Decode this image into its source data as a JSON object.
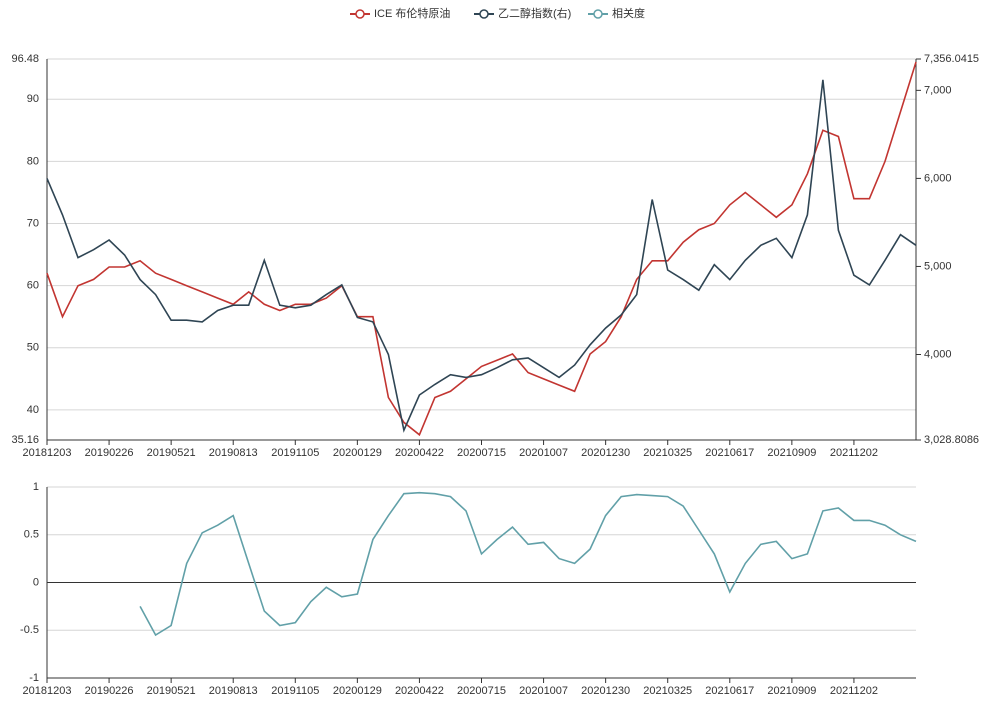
{
  "chart_data": [
    {
      "type": "line",
      "categories": [
        "20181203",
        null,
        null,
        null,
        "20190226",
        null,
        null,
        null,
        "20190521",
        null,
        null,
        null,
        "20190813",
        null,
        null,
        null,
        "20191105",
        null,
        null,
        null,
        "20200129",
        null,
        null,
        null,
        "20200422",
        null,
        null,
        null,
        "20200715",
        null,
        null,
        null,
        "20201007",
        null,
        null,
        null,
        "20201230",
        null,
        null,
        null,
        "20210325",
        null,
        null,
        null,
        "20210617",
        null,
        null,
        null,
        "20210909",
        null,
        null,
        null,
        "20211202",
        null,
        null,
        null,
        null
      ],
      "series": [
        {
          "name": "ICE 布伦特原油",
          "color": "#c23531",
          "values": [
            62,
            55,
            60,
            61,
            63,
            63,
            64,
            62,
            61,
            60,
            59,
            58,
            57,
            59,
            57,
            56,
            57,
            57,
            58,
            60,
            55,
            55,
            42,
            38,
            36,
            42,
            43,
            45,
            47,
            48,
            49,
            46,
            45,
            44,
            43,
            49,
            51,
            55,
            61,
            64,
            64,
            67,
            69,
            70,
            73,
            75,
            73,
            71,
            73,
            78,
            85,
            84,
            74,
            74,
            80,
            88,
            96
          ]
        },
        {
          "name": "乙二醇指数(右)",
          "color": "#2f4554",
          "axis": "y2",
          "values": [
            6000,
            5585,
            5100,
            5190,
            5300,
            5130,
            4850,
            4680,
            4390,
            4390,
            4370,
            4500,
            4560,
            4560,
            5070,
            4560,
            4530,
            4560,
            4680,
            4790,
            4420,
            4370,
            4000,
            3140,
            3540,
            3660,
            3770,
            3740,
            3770,
            3850,
            3940,
            3960,
            3850,
            3740,
            3880,
            4110,
            4300,
            4450,
            4680,
            5760,
            4960,
            4850,
            4730,
            5020,
            4850,
            5070,
            5240,
            5320,
            5100,
            5585,
            7120,
            5410,
            4900,
            4790,
            5070,
            5360,
            5240
          ]
        }
      ],
      "ylim": [
        35.16,
        96.48
      ],
      "yticks": [
        {
          "value": 35.16,
          "label": "35.16"
        },
        40,
        50,
        60,
        70,
        80,
        90,
        {
          "value": 96.48,
          "label": "96.48"
        }
      ],
      "y2lim": [
        3028.8086,
        7356.0415
      ],
      "y2ticks": [
        {
          "value": 3028.8086,
          "label": "3,028.8086"
        },
        {
          "value": 4000,
          "label": "4,000"
        },
        {
          "value": 5000,
          "label": "5,000"
        },
        {
          "value": 6000,
          "label": "6,000"
        },
        {
          "value": 7000,
          "label": "7,000"
        },
        {
          "value": 7356.0415,
          "label": "7,356.0415"
        }
      ],
      "grid": true
    },
    {
      "type": "line",
      "categories": [
        "20181203",
        null,
        null,
        null,
        "20190226",
        null,
        null,
        null,
        "20190521",
        null,
        null,
        null,
        "20190813",
        null,
        null,
        null,
        "20191105",
        null,
        null,
        null,
        "20200129",
        null,
        null,
        null,
        "20200422",
        null,
        null,
        null,
        "20200715",
        null,
        null,
        null,
        "20201007",
        null,
        null,
        null,
        "20201230",
        null,
        null,
        null,
        "20210325",
        null,
        null,
        null,
        "20210617",
        null,
        null,
        null,
        "20210909",
        null,
        null,
        null,
        "20211202",
        null,
        null,
        null,
        null
      ],
      "series": [
        {
          "name": "相关度",
          "color": "#61a0a8",
          "values": [
            null,
            null,
            null,
            null,
            null,
            null,
            -0.25,
            -0.55,
            -0.45,
            0.2,
            0.52,
            0.6,
            0.7,
            0.2,
            -0.3,
            -0.45,
            -0.42,
            -0.2,
            -0.05,
            -0.15,
            -0.12,
            0.45,
            0.7,
            0.93,
            0.94,
            0.93,
            0.9,
            0.75,
            0.3,
            0.45,
            0.58,
            0.4,
            0.42,
            0.25,
            0.2,
            0.35,
            0.7,
            0.9,
            0.92,
            0.91,
            0.9,
            0.8,
            0.55,
            0.3,
            -0.1,
            0.2,
            0.4,
            0.43,
            0.25,
            0.3,
            0.75,
            0.78,
            0.65,
            0.65,
            0.6,
            0.5,
            0.43
          ]
        }
      ],
      "ylim": [
        -1,
        1
      ],
      "yticks": [
        -1,
        -0.5,
        0,
        0.5,
        1
      ],
      "grid": true
    }
  ]
}
